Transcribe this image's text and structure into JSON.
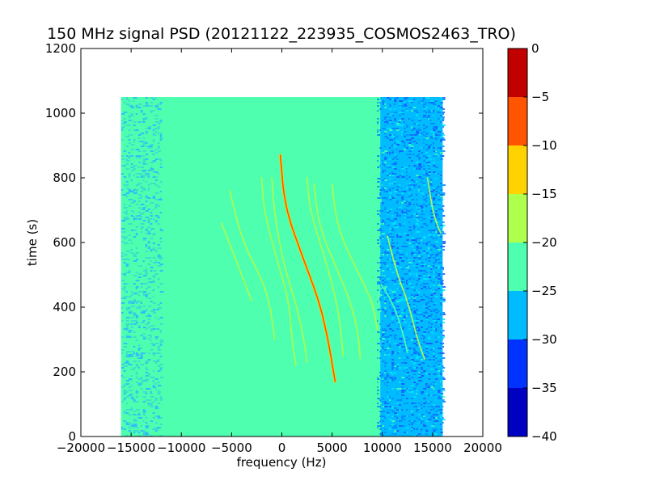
{
  "chart_data": {
    "type": "heatmap",
    "title": "150 MHz signal PSD (20121122_223935_COSMOS2463_TRO)",
    "xlabel": "frequency (Hz)",
    "ylabel": "time (s)",
    "xlim": [
      -20000,
      20000
    ],
    "ylim": [
      0,
      1200
    ],
    "xticks": [
      -20000,
      -15000,
      -10000,
      -5000,
      0,
      5000,
      10000,
      15000,
      20000
    ],
    "xtick_labels": [
      "−20000",
      "−15000",
      "−10000",
      "−5000",
      "0",
      "5000",
      "10000",
      "15000",
      "20000"
    ],
    "yticks": [
      0,
      200,
      400,
      600,
      800,
      1000,
      1200
    ],
    "ytick_labels": [
      "0",
      "200",
      "400",
      "600",
      "800",
      "1000",
      "1200"
    ],
    "data_extent": {
      "freq": [
        -16000,
        16000
      ],
      "time": [
        0,
        1050
      ]
    },
    "background_level_dB": -22.5,
    "bands": [
      {
        "freq": [
          -16000,
          -12000
        ],
        "level_dB": -23.5,
        "description": "noisy mixed cyan band"
      },
      {
        "freq": [
          -12000,
          9800
        ],
        "level_dB": -22.5,
        "description": "uniform band"
      },
      {
        "freq": [
          9800,
          16000
        ],
        "level_dB": -28,
        "description": "noisy low band"
      }
    ],
    "traces": [
      {
        "level_dB": -8,
        "points": [
          [
            -150,
            870
          ],
          [
            300,
            710
          ],
          [
            2000,
            560
          ],
          [
            3700,
            420
          ],
          [
            4600,
            300
          ],
          [
            5300,
            170
          ]
        ]
      },
      {
        "level_dB": -17,
        "points": [
          [
            -1000,
            800
          ],
          [
            -700,
            680
          ],
          [
            200,
            530
          ],
          [
            1500,
            400
          ],
          [
            2200,
            300
          ],
          [
            2500,
            230
          ]
        ]
      },
      {
        "level_dB": -17,
        "points": [
          [
            -2000,
            800
          ],
          [
            -1800,
            700
          ],
          [
            -600,
            560
          ],
          [
            700,
            420
          ],
          [
            1000,
            300
          ],
          [
            1400,
            220
          ]
        ]
      },
      {
        "level_dB": -17,
        "points": [
          [
            -5200,
            760
          ],
          [
            -3900,
            600
          ],
          [
            -1400,
            450
          ],
          [
            -700,
            300
          ]
        ]
      },
      {
        "level_dB": -17,
        "points": [
          [
            3200,
            780
          ],
          [
            3700,
            650
          ],
          [
            5300,
            530
          ],
          [
            6800,
            420
          ],
          [
            7600,
            320
          ],
          [
            7800,
            240
          ]
        ]
      },
      {
        "level_dB": -20,
        "points": [
          [
            2500,
            800
          ],
          [
            2800,
            700
          ],
          [
            4000,
            580
          ],
          [
            5200,
            450
          ],
          [
            5800,
            350
          ],
          [
            6100,
            250
          ]
        ]
      },
      {
        "level_dB": -19,
        "points": [
          [
            5000,
            780
          ],
          [
            5500,
            650
          ],
          [
            7200,
            530
          ],
          [
            9000,
            420
          ],
          [
            9500,
            330
          ]
        ]
      },
      {
        "level_dB": -19,
        "points": [
          [
            10500,
            620
          ],
          [
            11500,
            500
          ],
          [
            12500,
            420
          ],
          [
            13500,
            300
          ],
          [
            14200,
            240
          ]
        ]
      },
      {
        "level_dB": -17,
        "points": [
          [
            14500,
            800
          ],
          [
            15000,
            700
          ],
          [
            15500,
            650
          ],
          [
            15800,
            630
          ]
        ]
      },
      {
        "level_dB": -20,
        "points": [
          [
            -6000,
            660
          ],
          [
            -5000,
            580
          ],
          [
            -4000,
            500
          ],
          [
            -3000,
            420
          ]
        ]
      },
      {
        "level_dB": -24,
        "points": [
          [
            9900,
            470
          ],
          [
            10900,
            420
          ],
          [
            11800,
            350
          ],
          [
            12500,
            260
          ]
        ]
      }
    ],
    "colorbar": {
      "levels": [
        -40,
        -35,
        -30,
        -25,
        -20,
        -15,
        -10,
        -5,
        0
      ],
      "tick_labels": [
        "−40",
        "−35",
        "−30",
        "−25",
        "−20",
        "−15",
        "−10",
        "−5",
        "0"
      ],
      "colors": [
        "#0000c3",
        "#0033ff",
        "#00bcff",
        "#4dffaf",
        "#afff4d",
        "#ffd200",
        "#ff5500",
        "#c30000"
      ]
    }
  }
}
